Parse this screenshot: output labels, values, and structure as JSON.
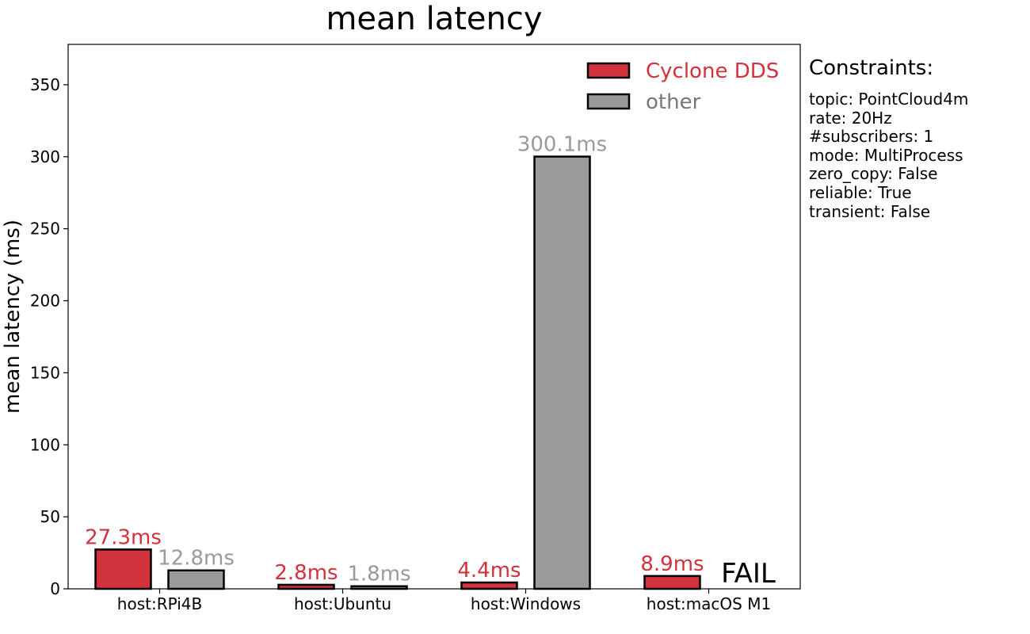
{
  "chart_data": {
    "type": "bar",
    "title": "mean latency",
    "xlabel": "",
    "ylabel": "mean latency (ms)",
    "ylim": [
      0,
      378
    ],
    "yticks": [
      0,
      50,
      100,
      150,
      200,
      250,
      300,
      350
    ],
    "categories": [
      "host:RPi4B",
      "host:Ubuntu",
      "host:Windows",
      "host:macOS M1"
    ],
    "series": [
      {
        "name": "Cyclone DDS",
        "color": "#d1323c",
        "values": [
          27.3,
          2.8,
          4.4,
          8.9
        ],
        "labels": [
          "27.3ms",
          "2.8ms",
          "4.4ms",
          "8.9ms"
        ]
      },
      {
        "name": "other",
        "color": "#9a9a9a",
        "values": [
          12.8,
          1.8,
          300.1,
          null
        ],
        "labels": [
          "12.8ms",
          "1.8ms",
          "300.1ms",
          "FAIL"
        ]
      }
    ],
    "legend_position": "top-right",
    "grid": false
  },
  "constraints": {
    "title": "Constraints:",
    "lines": [
      "topic: PointCloud4m",
      "rate: 20Hz",
      "#subscribers: 1",
      "mode: MultiProcess",
      "zero_copy: False",
      "reliable: True",
      "transient: False"
    ]
  }
}
